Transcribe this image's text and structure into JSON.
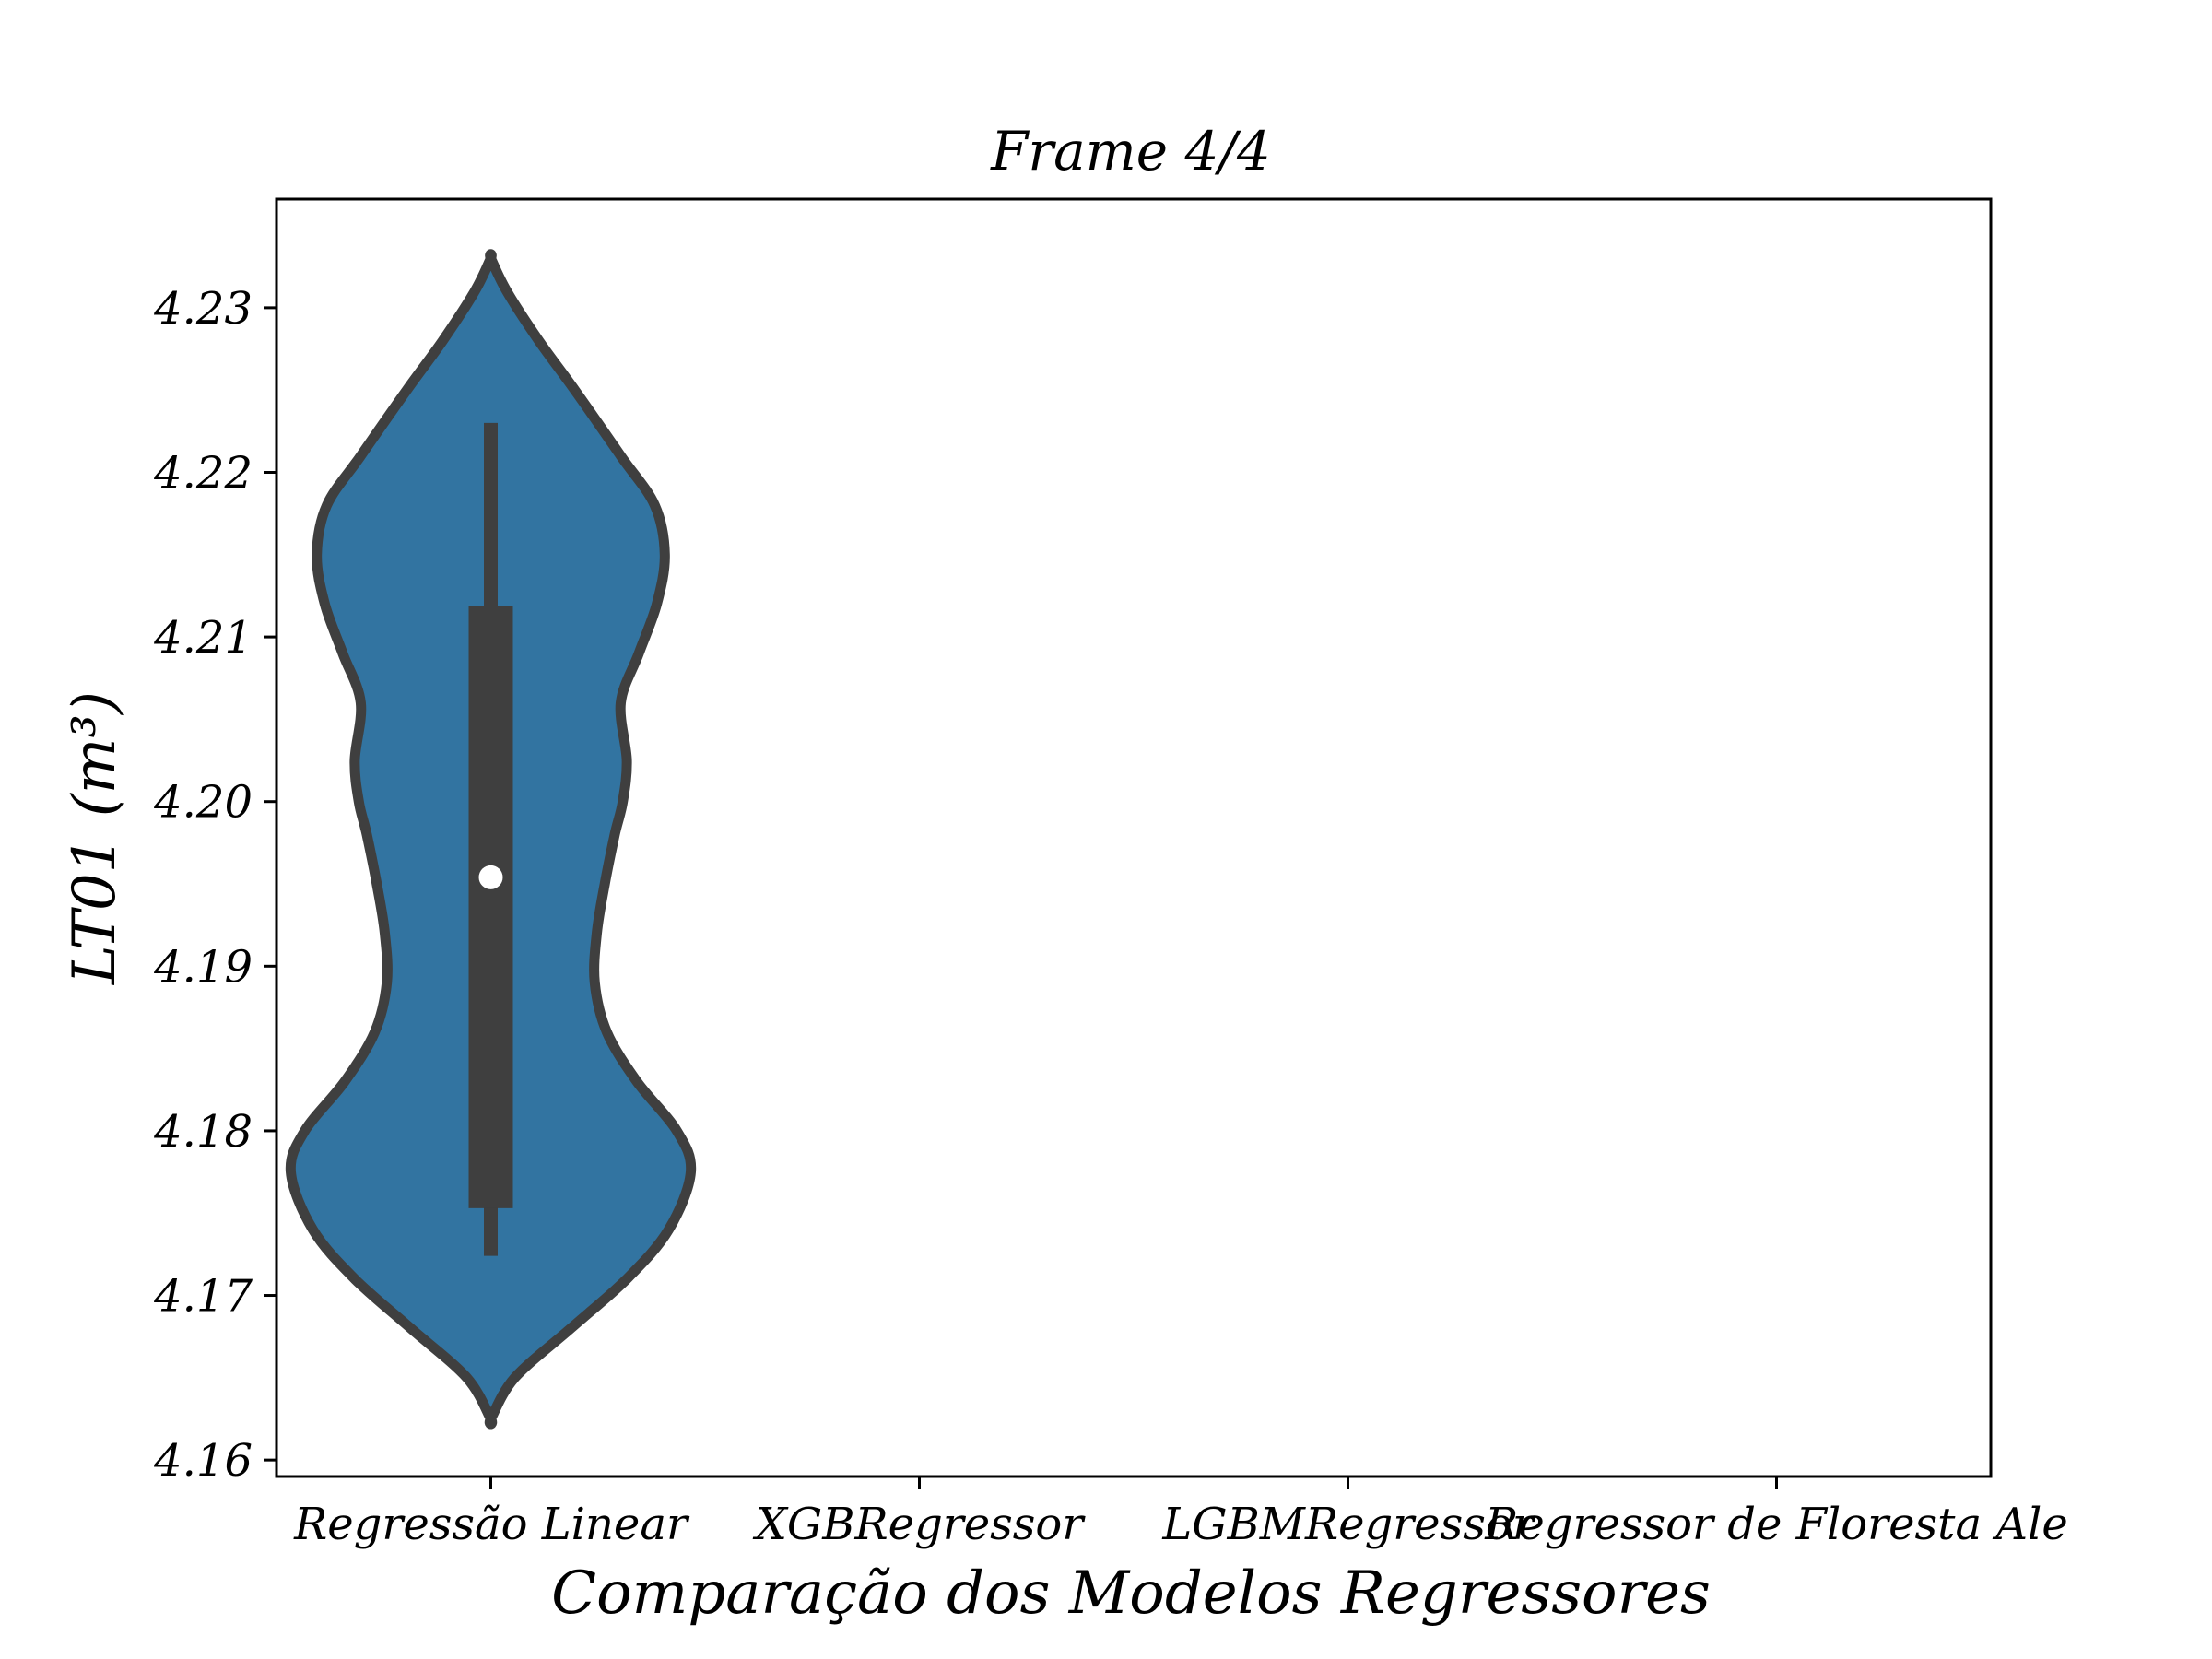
{
  "chart_data": {
    "type": "violin",
    "title": "Frame 4/4",
    "xlabel": "Comparação dos Modelos Regressores",
    "ylabel": "LT01 (m³)",
    "categories": [
      "Regressão Linear",
      "XGBRegressor",
      "LGBMRegressor",
      "Regressor de Floresta Ale"
    ],
    "ylim": [
      4.159,
      4.2366
    ],
    "yticks": [
      "4.16",
      "4.17",
      "4.18",
      "4.19",
      "4.20",
      "4.21",
      "4.22",
      "4.23"
    ],
    "grid": false,
    "violins": [
      {
        "category": "Regressão Linear",
        "fill_color": "#3274a1",
        "edge_color": "#3f3f3f",
        "median": 4.1954,
        "q1": 4.1753,
        "q3": 4.2119,
        "whisker_low": 4.1724,
        "whisker_high": 4.223,
        "kde_min": 4.1625,
        "kde_max": 4.233,
        "density_profile": [
          [
            4.1625,
            0.0
          ],
          [
            4.165,
            0.12
          ],
          [
            4.168,
            0.4
          ],
          [
            4.171,
            0.68
          ],
          [
            4.174,
            0.89
          ],
          [
            4.1775,
            1.0
          ],
          [
            4.18,
            0.93
          ],
          [
            4.183,
            0.73
          ],
          [
            4.186,
            0.58
          ],
          [
            4.189,
            0.52
          ],
          [
            4.192,
            0.53
          ],
          [
            4.195,
            0.57
          ],
          [
            4.198,
            0.62
          ],
          [
            4.2,
            0.66
          ],
          [
            4.2025,
            0.68
          ],
          [
            4.206,
            0.65
          ],
          [
            4.209,
            0.74
          ],
          [
            4.212,
            0.83
          ],
          [
            4.215,
            0.87
          ],
          [
            4.218,
            0.82
          ],
          [
            4.221,
            0.65
          ],
          [
            4.225,
            0.42
          ],
          [
            4.228,
            0.24
          ],
          [
            4.231,
            0.08
          ],
          [
            4.233,
            0.0
          ]
        ]
      }
    ]
  }
}
